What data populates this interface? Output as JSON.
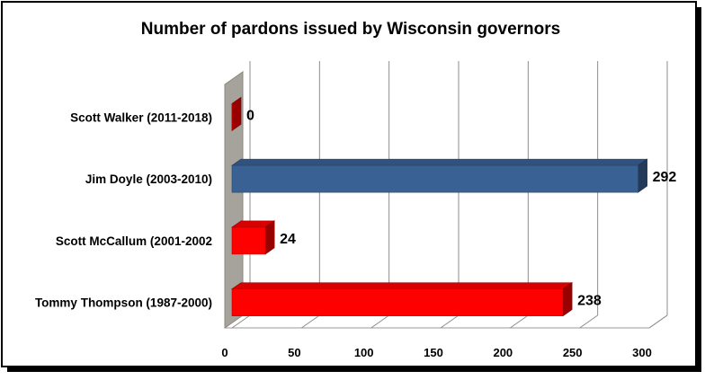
{
  "chart_data": {
    "type": "bar",
    "orientation": "horizontal",
    "title": "Number of pardons issued by Wisconsin governors",
    "categories": [
      "Scott Walker (2011-2018)",
      "Jim Doyle (2003-2010)",
      "Scott McCallum (2001-2002",
      "Tommy Thompson (1987-2000)"
    ],
    "values": [
      0,
      292,
      24,
      238
    ],
    "bar_colors": [
      "#ff0000",
      "#3a6194",
      "#ff0000",
      "#ff0000"
    ],
    "xlim": [
      0,
      300
    ],
    "x_ticks": [
      0,
      50,
      100,
      150,
      200,
      250,
      300
    ],
    "grid": true,
    "legend": "none",
    "style": "3d-bar"
  }
}
